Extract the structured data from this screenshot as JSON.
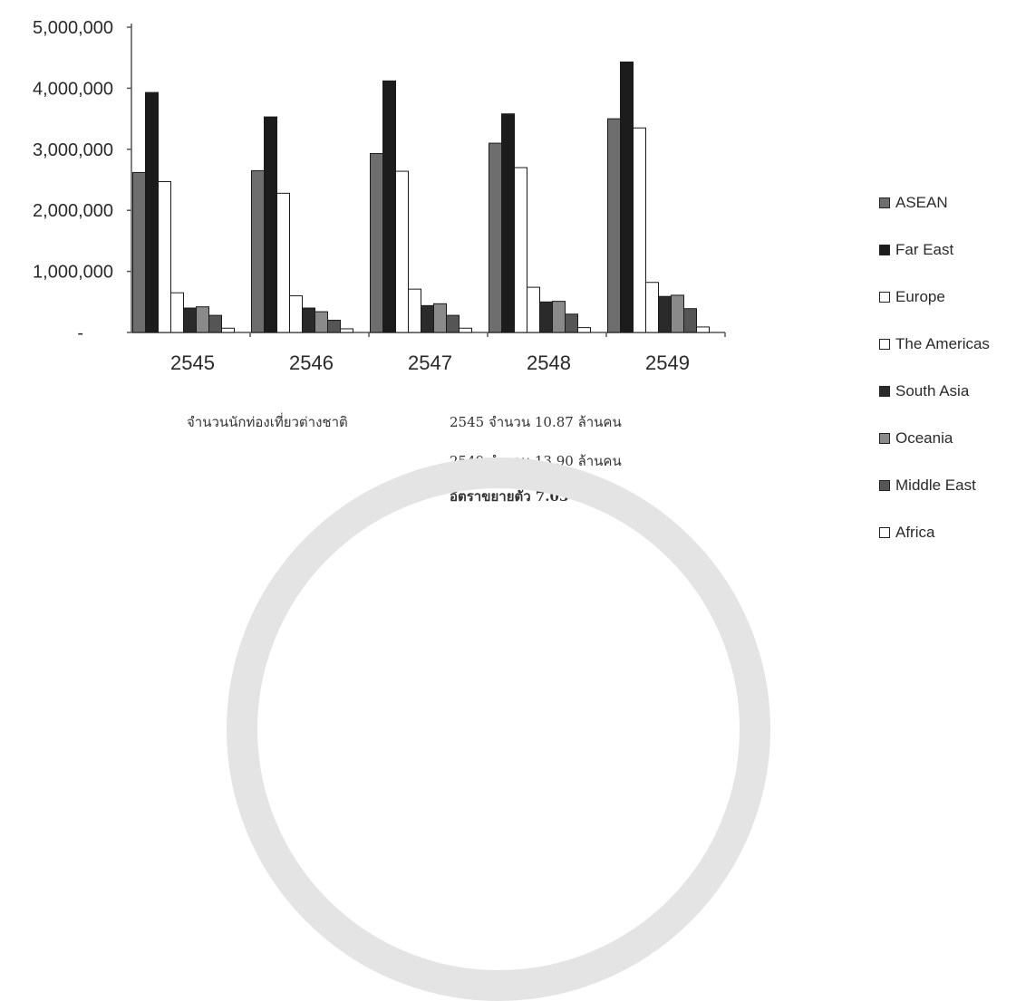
{
  "chart_data": {
    "type": "bar",
    "categories": [
      "2545",
      "2546",
      "2547",
      "2548",
      "2549"
    ],
    "ylim": [
      0,
      5000000
    ],
    "y_ticks": [
      {
        "value": 0,
        "label": "-"
      },
      {
        "value": 1000000,
        "label": "1,000,000"
      },
      {
        "value": 2000000,
        "label": "2,000,000"
      },
      {
        "value": 3000000,
        "label": "3,000,000"
      },
      {
        "value": 4000000,
        "label": "4,000,000"
      },
      {
        "value": 5000000,
        "label": "5,000,000"
      }
    ],
    "legend_placement": "right",
    "grid": false,
    "series": [
      {
        "name": "ASEAN",
        "color": "#6e6e6e",
        "values": [
          2620000,
          2650000,
          2930000,
          3100000,
          3500000
        ]
      },
      {
        "name": "Far East",
        "color": "#1c1c1c",
        "values": [
          3930000,
          3530000,
          4120000,
          3580000,
          4430000
        ]
      },
      {
        "name": "Europe",
        "color": "#ffffff",
        "values": [
          2470000,
          2280000,
          2640000,
          2700000,
          3350000
        ]
      },
      {
        "name": "The Americas",
        "color": "#ffffff",
        "values": [
          650000,
          600000,
          710000,
          740000,
          820000
        ]
      },
      {
        "name": "South Asia",
        "color": "#2a2a2a",
        "values": [
          400000,
          400000,
          440000,
          500000,
          590000
        ]
      },
      {
        "name": "Oceania",
        "color": "#8a8a8a",
        "values": [
          420000,
          340000,
          470000,
          510000,
          610000
        ]
      },
      {
        "name": "Middle East",
        "color": "#555555",
        "values": [
          280000,
          200000,
          280000,
          300000,
          390000
        ]
      },
      {
        "name": "Africa",
        "color": "#ffffff",
        "values": [
          70000,
          60000,
          70000,
          80000,
          90000
        ]
      }
    ]
  },
  "notes": {
    "label": "จำนวนนักท่องเที่ยวต่างชาติ",
    "line1": "2545 จำนวน  10.87 ล้านคน",
    "line2": "2549 จำนวน 13.90 ล้านคน",
    "line3": "อัตราขยายตัว 7.03 % ต่อปี"
  }
}
